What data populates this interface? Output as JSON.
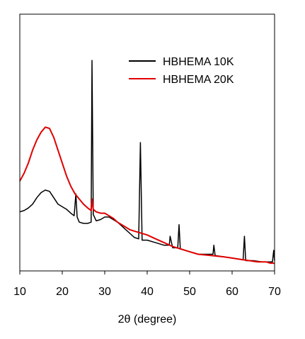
{
  "chart_data": {
    "type": "line",
    "xlabel": "2θ (degree)",
    "xlim": [
      10,
      70
    ],
    "x_ticks": [
      10,
      20,
      30,
      40,
      50,
      60,
      70
    ],
    "x_tick_labels": [
      "10",
      "20",
      "30",
      "40",
      "50",
      "60",
      "70"
    ],
    "y_ticks_visible": false,
    "grid": false,
    "legend_position": "top-right",
    "ylim": [
      0,
      100
    ],
    "series": [
      {
        "name": "HBHEMA 10K",
        "color": "#000000",
        "points": [
          [
            10,
            23
          ],
          [
            11,
            23.5
          ],
          [
            12,
            24.5
          ],
          [
            13,
            26
          ],
          [
            14,
            28.5
          ],
          [
            15,
            30.5
          ],
          [
            16,
            31.5
          ],
          [
            17,
            31
          ],
          [
            18,
            28.5
          ],
          [
            19,
            26
          ],
          [
            20,
            25
          ],
          [
            21,
            24
          ],
          [
            22,
            22.5
          ],
          [
            22.8,
            21.5
          ],
          [
            23.2,
            30
          ],
          [
            23.5,
            21
          ],
          [
            24,
            19
          ],
          [
            25,
            18.5
          ],
          [
            26,
            18.5
          ],
          [
            26.8,
            19
          ],
          [
            27.0,
            82
          ],
          [
            27.3,
            22
          ],
          [
            28,
            19.5
          ],
          [
            29,
            20
          ],
          [
            30,
            21
          ],
          [
            31,
            21
          ],
          [
            32,
            20
          ],
          [
            33,
            19
          ],
          [
            34,
            17.5
          ],
          [
            35,
            16
          ],
          [
            36,
            14.5
          ],
          [
            37,
            13
          ],
          [
            38.0,
            12.5
          ],
          [
            38.4,
            50
          ],
          [
            38.8,
            12
          ],
          [
            40,
            12
          ],
          [
            42,
            11
          ],
          [
            44,
            10
          ],
          [
            45.2,
            10
          ],
          [
            45.4,
            13.5
          ],
          [
            46,
            9
          ],
          [
            47.2,
            9
          ],
          [
            47.5,
            18
          ],
          [
            47.8,
            8.5
          ],
          [
            50,
            7.5
          ],
          [
            52,
            6.5
          ],
          [
            55.5,
            6.5
          ],
          [
            55.7,
            10
          ],
          [
            56,
            6
          ],
          [
            58,
            5.5
          ],
          [
            60,
            5
          ],
          [
            62,
            4.5
          ],
          [
            62.6,
            4.5
          ],
          [
            62.9,
            13.5
          ],
          [
            63.2,
            4
          ],
          [
            65,
            4
          ],
          [
            67,
            3.5
          ],
          [
            69,
            3.5
          ],
          [
            69.5,
            3.5
          ],
          [
            69.8,
            8
          ],
          [
            70,
            4
          ]
        ]
      },
      {
        "name": "HBHEMA 20K",
        "color": "#e00000",
        "points": [
          [
            10,
            35
          ],
          [
            11,
            38
          ],
          [
            12,
            42
          ],
          [
            13,
            47
          ],
          [
            14,
            51
          ],
          [
            15,
            54
          ],
          [
            16,
            56
          ],
          [
            17,
            55.5
          ],
          [
            18,
            52
          ],
          [
            19,
            47
          ],
          [
            20,
            42
          ],
          [
            21,
            37
          ],
          [
            22,
            33
          ],
          [
            23,
            30
          ],
          [
            24,
            28
          ],
          [
            25,
            26
          ],
          [
            26,
            24.5
          ],
          [
            26.8,
            23.5
          ],
          [
            27.0,
            28
          ],
          [
            27.3,
            24
          ],
          [
            28,
            23
          ],
          [
            29,
            22.5
          ],
          [
            30,
            22.5
          ],
          [
            31,
            21.5
          ],
          [
            32,
            20.5
          ],
          [
            33,
            19
          ],
          [
            34,
            18
          ],
          [
            35,
            17
          ],
          [
            36,
            16
          ],
          [
            37,
            15.5
          ],
          [
            38,
            15
          ],
          [
            40,
            14
          ],
          [
            42,
            12.5
          ],
          [
            44,
            11
          ],
          [
            46,
            9.5
          ],
          [
            48,
            8.5
          ],
          [
            50,
            7.5
          ],
          [
            52,
            6.5
          ],
          [
            55,
            6
          ],
          [
            58,
            5.5
          ],
          [
            60,
            5
          ],
          [
            62,
            4.5
          ],
          [
            64,
            4
          ],
          [
            66,
            3.5
          ],
          [
            68,
            3.5
          ],
          [
            69,
            3
          ],
          [
            70,
            3
          ]
        ]
      }
    ]
  }
}
